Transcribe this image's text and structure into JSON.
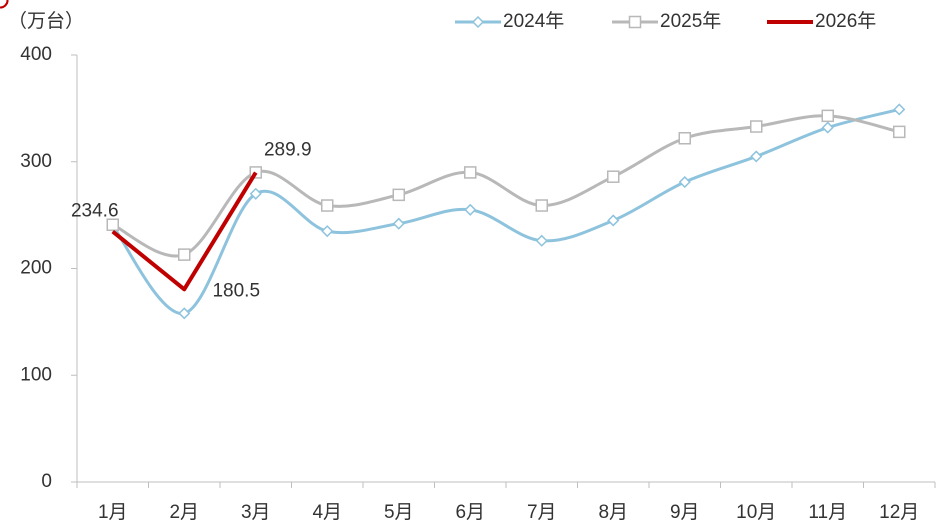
{
  "chart_data": {
    "type": "line",
    "y_unit_label": "（万台）",
    "categories": [
      "1月",
      "2月",
      "3月",
      "4月",
      "5月",
      "6月",
      "7月",
      "8月",
      "9月",
      "10月",
      "11月",
      "12月"
    ],
    "series": [
      {
        "name": "2024年",
        "color": "#8ec3dd",
        "marker": "diamond",
        "smooth": true,
        "values": [
          240,
          158,
          270,
          235,
          242,
          255,
          226,
          245,
          281,
          305,
          332,
          349
        ]
      },
      {
        "name": "2025年",
        "color": "#b8b8b8",
        "marker": "square",
        "smooth": true,
        "values": [
          241,
          213,
          290,
          259,
          269,
          290,
          259,
          286,
          322,
          333,
          343,
          328
        ]
      },
      {
        "name": "2026年",
        "color": "#c00000",
        "marker": "circle",
        "smooth": false,
        "labels": true,
        "values": [
          234.6,
          180.5,
          289.9,
          null,
          null,
          null,
          null,
          null,
          null,
          null,
          null,
          null
        ]
      }
    ],
    "ylim": [
      0,
      400
    ],
    "yticks": [
      0,
      100,
      200,
      300,
      400
    ],
    "grid": false,
    "legend": "top-right"
  }
}
